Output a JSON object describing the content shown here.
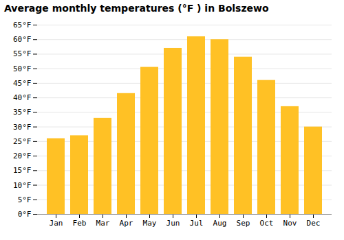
{
  "chart_data": {
    "type": "bar",
    "title": "Average monthly temperatures (°F ) in Bolszewo",
    "categories": [
      "Jan",
      "Feb",
      "Mar",
      "Apr",
      "May",
      "Jun",
      "Jul",
      "Aug",
      "Sep",
      "Oct",
      "Nov",
      "Dec"
    ],
    "values": [
      26,
      27,
      33,
      41.5,
      50.5,
      57,
      61,
      60,
      54,
      46,
      37,
      30
    ],
    "color": "#FFC125",
    "ylim": [
      0,
      65
    ],
    "yticks": [
      {
        "value": 0,
        "label": "0°F"
      },
      {
        "value": 5,
        "label": "5°F"
      },
      {
        "value": 10,
        "label": "10°F"
      },
      {
        "value": 15,
        "label": "15°F"
      },
      {
        "value": 20,
        "label": "20°F"
      },
      {
        "value": 25,
        "label": "25°F"
      },
      {
        "value": 30,
        "label": "30°F"
      },
      {
        "value": 35,
        "label": "35°F"
      },
      {
        "value": 40,
        "label": "40°F"
      },
      {
        "value": 45,
        "label": "45°F"
      },
      {
        "value": 50,
        "label": "50°F"
      },
      {
        "value": 55,
        "label": "55°F"
      },
      {
        "value": 60,
        "label": "60°F"
      },
      {
        "value": 65,
        "label": "65°F"
      }
    ],
    "grid": true
  }
}
